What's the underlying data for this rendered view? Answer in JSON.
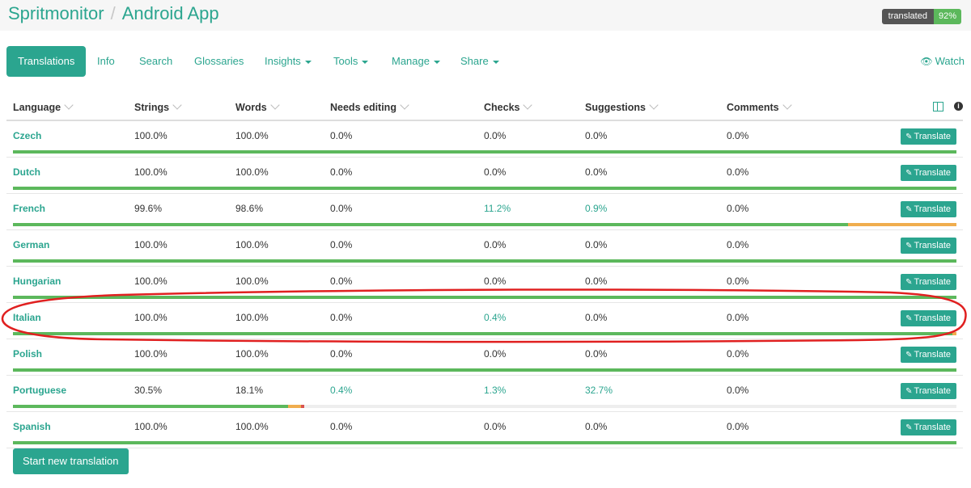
{
  "header": {
    "project": "Spritmonitor",
    "separator": "/",
    "component": "Android App",
    "badge_label": "translated",
    "badge_value": "92%"
  },
  "nav": {
    "tabs": [
      {
        "label": "Translations",
        "dropdown": false
      },
      {
        "label": "Info",
        "dropdown": false
      },
      {
        "label": "Search",
        "dropdown": false
      },
      {
        "label": "Glossaries",
        "dropdown": false
      },
      {
        "label": "Insights",
        "dropdown": true
      },
      {
        "label": "Tools",
        "dropdown": true
      },
      {
        "label": "Manage",
        "dropdown": true
      },
      {
        "label": "Share",
        "dropdown": true
      }
    ],
    "watch_label": "Watch"
  },
  "table": {
    "columns": [
      "Language",
      "Strings",
      "Words",
      "Needs editing",
      "Checks",
      "Suggestions",
      "Comments"
    ],
    "translate_label": "Translate",
    "rows": [
      {
        "language": "Czech",
        "strings": "100.0%",
        "words": "100.0%",
        "needs_editing": "0.0%",
        "checks": "0.0%",
        "suggestions": "0.0%",
        "comments": "0.0%",
        "progress": {
          "green": 1.0,
          "orange": 0,
          "red": 0
        }
      },
      {
        "language": "Dutch",
        "strings": "100.0%",
        "words": "100.0%",
        "needs_editing": "0.0%",
        "checks": "0.0%",
        "suggestions": "0.0%",
        "comments": "0.0%",
        "progress": {
          "green": 1.0,
          "orange": 0,
          "red": 0
        }
      },
      {
        "language": "French",
        "strings": "99.6%",
        "words": "98.6%",
        "needs_editing": "0.0%",
        "checks": "11.2%",
        "suggestions": "0.9%",
        "comments": "0.0%",
        "progress": {
          "green": 0.885,
          "orange": 0.115,
          "red": 0
        }
      },
      {
        "language": "German",
        "strings": "100.0%",
        "words": "100.0%",
        "needs_editing": "0.0%",
        "checks": "0.0%",
        "suggestions": "0.0%",
        "comments": "0.0%",
        "progress": {
          "green": 1.0,
          "orange": 0,
          "red": 0
        }
      },
      {
        "language": "Hungarian",
        "strings": "100.0%",
        "words": "100.0%",
        "needs_editing": "0.0%",
        "checks": "0.0%",
        "suggestions": "0.0%",
        "comments": "0.0%",
        "progress": {
          "green": 1.0,
          "orange": 0,
          "red": 0
        }
      },
      {
        "language": "Italian",
        "strings": "100.0%",
        "words": "100.0%",
        "needs_editing": "0.0%",
        "checks": "0.4%",
        "suggestions": "0.0%",
        "comments": "0.0%",
        "progress": {
          "green": 0.996,
          "orange": 0.004,
          "red": 0
        }
      },
      {
        "language": "Polish",
        "strings": "100.0%",
        "words": "100.0%",
        "needs_editing": "0.0%",
        "checks": "0.0%",
        "suggestions": "0.0%",
        "comments": "0.0%",
        "progress": {
          "green": 1.0,
          "orange": 0,
          "red": 0
        }
      },
      {
        "language": "Portuguese",
        "strings": "30.5%",
        "words": "18.1%",
        "needs_editing": "0.4%",
        "checks": "1.3%",
        "suggestions": "32.7%",
        "comments": "0.0%",
        "progress": {
          "green": 0.292,
          "orange": 0.013,
          "red": 0.004
        }
      },
      {
        "language": "Spanish",
        "strings": "100.0%",
        "words": "100.0%",
        "needs_editing": "0.0%",
        "checks": "0.0%",
        "suggestions": "0.0%",
        "comments": "0.0%",
        "progress": {
          "green": 1.0,
          "orange": 0,
          "red": 0
        }
      }
    ]
  },
  "footer": {
    "start_label": "Start new translation"
  },
  "highlight_row": "Italian",
  "colors": {
    "accent": "#2ba58f",
    "progress_green": "#5cb85c",
    "progress_orange": "#f0ad4e",
    "progress_red": "#d9534f",
    "highlight_ellipse": "#e02020"
  }
}
